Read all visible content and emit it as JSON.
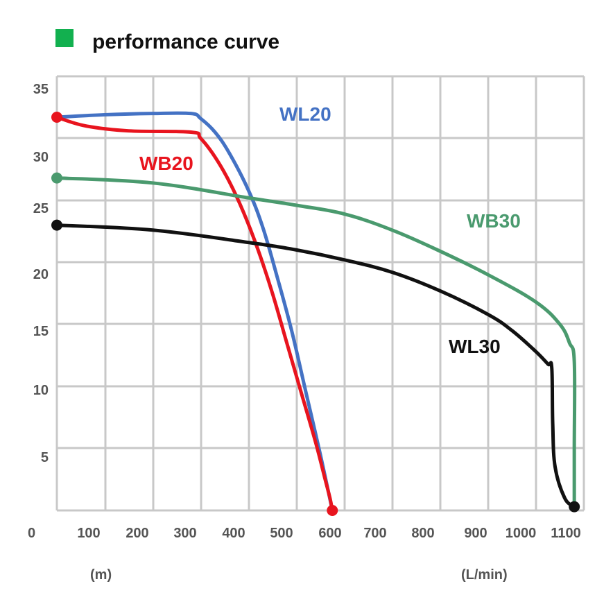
{
  "title": "performance curve",
  "legend_color": "#12b04f",
  "chart_data": {
    "type": "line",
    "title": "performance curve",
    "xlabel": "(L/min)",
    "ylabel": "(m)",
    "origin_label": "0",
    "xlim": [
      0,
      1100
    ],
    "ylim": [
      0,
      35
    ],
    "x_ticks": [
      "100",
      "200",
      "300",
      "400",
      "500",
      "600",
      "700",
      "800",
      "900",
      "1000",
      "1100"
    ],
    "y_ticks": [
      "5",
      "10",
      "15",
      "20",
      "25",
      "30",
      "35"
    ],
    "grid": true,
    "series": [
      {
        "name": "WL20",
        "color": "#4472c4",
        "x": [
          0,
          100,
          200,
          280,
          300,
          330,
          360,
          400,
          430,
          460,
          490,
          520,
          550,
          575
        ],
        "y": [
          31.7,
          31.9,
          32.0,
          32.0,
          31.6,
          30.5,
          28.8,
          25.8,
          22.8,
          18.8,
          14.5,
          9.5,
          4.5,
          0
        ]
      },
      {
        "name": "WB20",
        "color": "#e8141e",
        "x": [
          0,
          60,
          150,
          280,
          300,
          330,
          360,
          390,
          420,
          450,
          480,
          510,
          540,
          560,
          570,
          575
        ],
        "y": [
          31.7,
          31.0,
          30.6,
          30.5,
          30.0,
          28.5,
          26.5,
          24.0,
          21.0,
          17.5,
          13.5,
          9.5,
          5.5,
          2.5,
          1.0,
          0
        ]
      },
      {
        "name": "WB30",
        "color": "#4a9a6e",
        "x": [
          0,
          200,
          400,
          500,
          600,
          700,
          800,
          900,
          1000,
          1050,
          1070,
          1080,
          1080,
          1080
        ],
        "y": [
          26.8,
          26.4,
          25.2,
          24.6,
          23.9,
          22.6,
          20.9,
          19.0,
          16.8,
          15.0,
          13.5,
          12.0,
          5.0,
          0.3
        ]
      },
      {
        "name": "WL30",
        "color": "#111111",
        "x": [
          0,
          200,
          400,
          500,
          600,
          700,
          800,
          900,
          950,
          1000,
          1025,
          1033,
          1035,
          1040,
          1060,
          1080
        ],
        "y": [
          23.0,
          22.6,
          21.6,
          21.0,
          20.2,
          19.2,
          17.7,
          15.8,
          14.5,
          12.8,
          11.8,
          11.5,
          7.0,
          3.5,
          1.0,
          0.3
        ]
      }
    ],
    "endpoint_markers": [
      {
        "series": "WL20",
        "x": 0,
        "y": 31.7
      },
      {
        "series": "WB20",
        "x": 575,
        "y": 0
      },
      {
        "series": "WB30",
        "x": 0,
        "y": 26.8
      },
      {
        "series": "WL30",
        "x": 0,
        "y": 23.0
      },
      {
        "series": "WL30",
        "x": 1080,
        "y": 0.3
      }
    ]
  }
}
